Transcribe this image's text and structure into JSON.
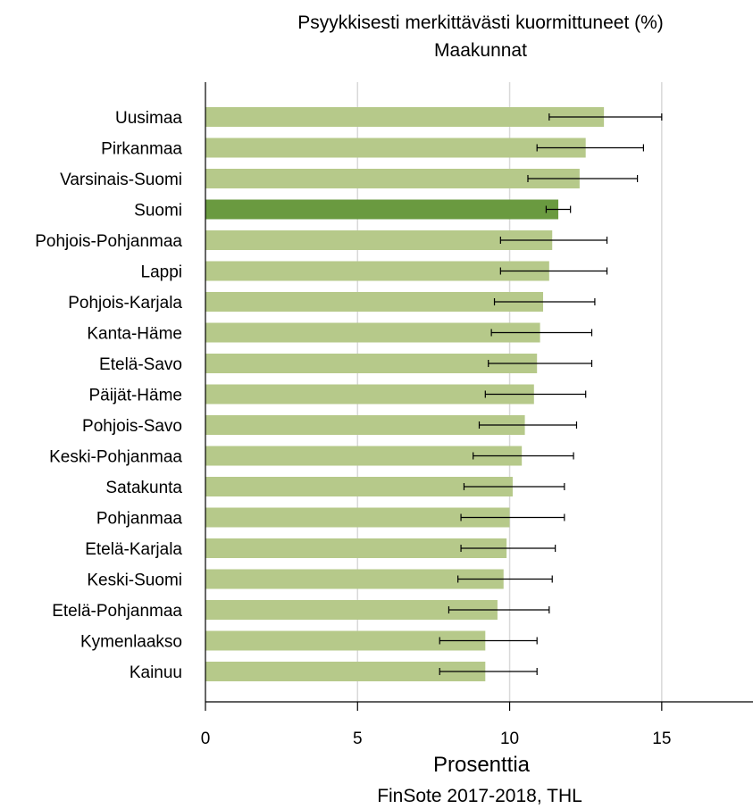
{
  "chart_data": {
    "type": "bar",
    "orientation": "horizontal",
    "title": "Psyykkisesti merkittävästi kuormittuneet (%)",
    "subtitle": "Maakunnat",
    "xlabel": "Prosenttia",
    "source": "FinSote 2017-2018, THL",
    "xlim": [
      0,
      18
    ],
    "xticks": [
      0,
      5,
      10,
      15
    ],
    "grid": "vertical",
    "colors": {
      "bar": "#b6c98a",
      "highlight": "#6a9a40",
      "grid": "#d9d9d9",
      "axis": "#000000"
    },
    "highlight": "Suomi",
    "categories": [
      "Uusimaa",
      "Pirkanmaa",
      "Varsinais-Suomi",
      "Suomi",
      "Pohjois-Pohjanmaa",
      "Lappi",
      "Pohjois-Karjala",
      "Kanta-Häme",
      "Etelä-Savo",
      "Päijät-Häme",
      "Pohjois-Savo",
      "Keski-Pohjanmaa",
      "Satakunta",
      "Pohjanmaa",
      "Etelä-Karjala",
      "Keski-Suomi",
      "Etelä-Pohjanmaa",
      "Kymenlaakso",
      "Kainuu"
    ],
    "values": [
      13.1,
      12.5,
      12.3,
      11.6,
      11.4,
      11.3,
      11.1,
      11.0,
      10.9,
      10.8,
      10.5,
      10.4,
      10.1,
      10.0,
      9.9,
      9.8,
      9.6,
      9.2,
      9.2
    ],
    "error_low": [
      11.3,
      10.9,
      10.6,
      11.2,
      9.7,
      9.7,
      9.5,
      9.4,
      9.3,
      9.2,
      9.0,
      8.8,
      8.5,
      8.4,
      8.4,
      8.3,
      8.0,
      7.7,
      7.7
    ],
    "error_high": [
      15.0,
      14.4,
      14.2,
      12.0,
      13.2,
      13.2,
      12.8,
      12.7,
      12.7,
      12.5,
      12.2,
      12.1,
      11.8,
      11.8,
      11.5,
      11.4,
      11.3,
      10.9,
      10.9
    ]
  }
}
